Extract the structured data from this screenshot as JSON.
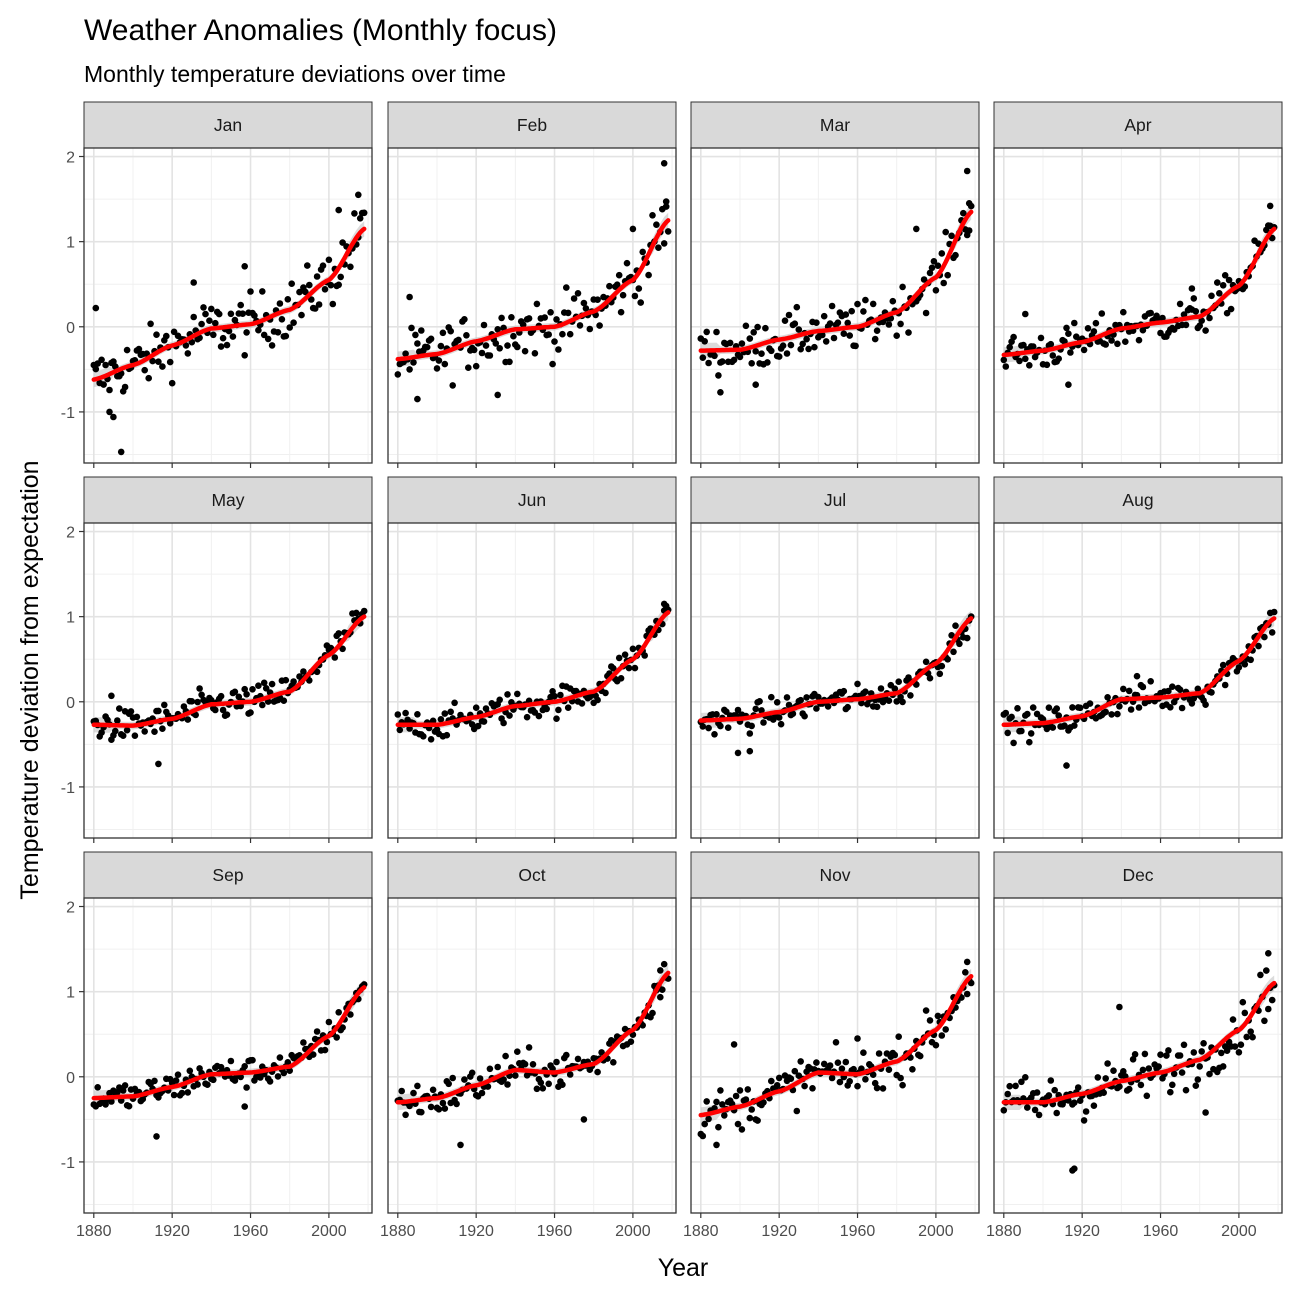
{
  "title": "Weather Anomalies (Monthly focus)",
  "subtitle": "Monthly temperature deviations over time",
  "chart_data": {
    "type": "scatter",
    "title": "Weather Anomalies (Monthly focus)",
    "subtitle": "Monthly temperature deviations over time",
    "xlabel": "Year",
    "ylabel": "Temperature deviation from expectation",
    "xlim": [
      1875,
      2022
    ],
    "ylim": [
      -1.6,
      2.1
    ],
    "x_ticks": [
      1880,
      1920,
      1960,
      2000
    ],
    "y_ticks": [
      -1,
      0,
      1,
      2
    ],
    "grid": true,
    "point_color": "#000000",
    "smooth_color": "#ff0000",
    "band_color": "#bebebe",
    "facets": [
      {
        "label": "Jan",
        "smooth": [
          [
            1880,
            -0.62
          ],
          [
            1900,
            -0.45
          ],
          [
            1920,
            -0.22
          ],
          [
            1940,
            -0.02
          ],
          [
            1960,
            0.03
          ],
          [
            1980,
            0.2
          ],
          [
            2000,
            0.55
          ],
          [
            2018,
            1.15
          ]
        ],
        "scatter": 0.27,
        "outliers": [
          [
            1881,
            0.22
          ],
          [
            1888,
            -1.0
          ],
          [
            1890,
            -1.06
          ],
          [
            1894,
            -1.47
          ],
          [
            1931,
            0.52
          ],
          [
            1957,
            0.71
          ],
          [
            2015,
            1.55
          ],
          [
            2005,
            1.37
          ]
        ]
      },
      {
        "label": "Feb",
        "smooth": [
          [
            1880,
            -0.38
          ],
          [
            1900,
            -0.32
          ],
          [
            1920,
            -0.17
          ],
          [
            1940,
            -0.03
          ],
          [
            1960,
            0.0
          ],
          [
            1980,
            0.18
          ],
          [
            2000,
            0.55
          ],
          [
            2018,
            1.25
          ]
        ],
        "scatter": 0.27,
        "outliers": [
          [
            1886,
            0.35
          ],
          [
            1890,
            -0.85
          ],
          [
            1931,
            -0.8
          ],
          [
            2016,
            1.92
          ],
          [
            2000,
            1.15
          ],
          [
            2017,
            1.47
          ]
        ]
      },
      {
        "label": "Mar",
        "smooth": [
          [
            1880,
            -0.28
          ],
          [
            1900,
            -0.27
          ],
          [
            1920,
            -0.15
          ],
          [
            1940,
            -0.05
          ],
          [
            1960,
            0.0
          ],
          [
            1980,
            0.17
          ],
          [
            2000,
            0.58
          ],
          [
            2018,
            1.35
          ]
        ],
        "scatter": 0.22,
        "outliers": [
          [
            1890,
            -0.77
          ],
          [
            1908,
            -0.68
          ],
          [
            1990,
            1.15
          ],
          [
            2016,
            1.83
          ],
          [
            2017,
            1.45
          ]
        ]
      },
      {
        "label": "Apr",
        "smooth": [
          [
            1880,
            -0.33
          ],
          [
            1900,
            -0.28
          ],
          [
            1920,
            -0.18
          ],
          [
            1940,
            -0.02
          ],
          [
            1960,
            0.05
          ],
          [
            1980,
            0.12
          ],
          [
            2000,
            0.48
          ],
          [
            2018,
            1.15
          ]
        ],
        "scatter": 0.18,
        "outliers": [
          [
            1891,
            0.15
          ],
          [
            1913,
            -0.68
          ],
          [
            1976,
            0.45
          ],
          [
            2016,
            1.42
          ]
        ]
      },
      {
        "label": "May",
        "smooth": [
          [
            1880,
            -0.27
          ],
          [
            1900,
            -0.28
          ],
          [
            1920,
            -0.2
          ],
          [
            1940,
            -0.03
          ],
          [
            1960,
            0.0
          ],
          [
            1980,
            0.12
          ],
          [
            2000,
            0.55
          ],
          [
            2018,
            1.0
          ]
        ],
        "scatter": 0.15,
        "outliers": [
          [
            1913,
            -0.73
          ],
          [
            1889,
            0.07
          ]
        ]
      },
      {
        "label": "Jun",
        "smooth": [
          [
            1880,
            -0.27
          ],
          [
            1900,
            -0.27
          ],
          [
            1920,
            -0.18
          ],
          [
            1940,
            -0.05
          ],
          [
            1960,
            0.0
          ],
          [
            1980,
            0.12
          ],
          [
            2000,
            0.5
          ],
          [
            2018,
            1.05
          ]
        ],
        "scatter": 0.14,
        "outliers": [
          [
            2016,
            1.15
          ]
        ]
      },
      {
        "label": "Jul",
        "smooth": [
          [
            1880,
            -0.22
          ],
          [
            1900,
            -0.2
          ],
          [
            1920,
            -0.12
          ],
          [
            1940,
            0.0
          ],
          [
            1960,
            0.03
          ],
          [
            1980,
            0.1
          ],
          [
            2000,
            0.45
          ],
          [
            2018,
            0.98
          ]
        ],
        "scatter": 0.13,
        "outliers": [
          [
            1899,
            -0.6
          ],
          [
            1905,
            -0.58
          ]
        ]
      },
      {
        "label": "Aug",
        "smooth": [
          [
            1880,
            -0.27
          ],
          [
            1900,
            -0.25
          ],
          [
            1920,
            -0.17
          ],
          [
            1940,
            0.03
          ],
          [
            1960,
            0.05
          ],
          [
            1980,
            0.1
          ],
          [
            2000,
            0.48
          ],
          [
            2018,
            0.98
          ]
        ],
        "scatter": 0.14,
        "outliers": [
          [
            1912,
            -0.75
          ],
          [
            1948,
            0.3
          ]
        ]
      },
      {
        "label": "Sep",
        "smooth": [
          [
            1880,
            -0.25
          ],
          [
            1900,
            -0.23
          ],
          [
            1920,
            -0.12
          ],
          [
            1940,
            0.03
          ],
          [
            1960,
            0.05
          ],
          [
            1980,
            0.12
          ],
          [
            2000,
            0.48
          ],
          [
            2018,
            1.05
          ]
        ],
        "scatter": 0.14,
        "outliers": [
          [
            1912,
            -0.7
          ],
          [
            1957,
            -0.35
          ]
        ]
      },
      {
        "label": "Oct",
        "smooth": [
          [
            1880,
            -0.3
          ],
          [
            1900,
            -0.25
          ],
          [
            1920,
            -0.1
          ],
          [
            1940,
            0.08
          ],
          [
            1960,
            0.05
          ],
          [
            1980,
            0.15
          ],
          [
            2000,
            0.55
          ],
          [
            2018,
            1.22
          ]
        ],
        "scatter": 0.17,
        "outliers": [
          [
            1912,
            -0.8
          ],
          [
            1975,
            -0.5
          ],
          [
            2014,
            1.25
          ]
        ]
      },
      {
        "label": "Nov",
        "smooth": [
          [
            1880,
            -0.45
          ],
          [
            1900,
            -0.35
          ],
          [
            1920,
            -0.17
          ],
          [
            1940,
            0.05
          ],
          [
            1960,
            0.03
          ],
          [
            1980,
            0.18
          ],
          [
            2000,
            0.55
          ],
          [
            2018,
            1.18
          ]
        ],
        "scatter": 0.2,
        "outliers": [
          [
            1888,
            -0.8
          ],
          [
            1897,
            0.38
          ],
          [
            1960,
            0.45
          ],
          [
            2016,
            1.35
          ]
        ]
      },
      {
        "label": "Dec",
        "smooth": [
          [
            1880,
            -0.3
          ],
          [
            1900,
            -0.3
          ],
          [
            1920,
            -0.2
          ],
          [
            1940,
            -0.05
          ],
          [
            1960,
            0.05
          ],
          [
            1980,
            0.2
          ],
          [
            2000,
            0.55
          ],
          [
            2018,
            1.1
          ]
        ],
        "scatter": 0.23,
        "outliers": [
          [
            1915,
            -1.1
          ],
          [
            1916,
            -1.08
          ],
          [
            1939,
            0.82
          ],
          [
            1983,
            -0.42
          ],
          [
            2015,
            1.45
          ]
        ]
      }
    ]
  }
}
